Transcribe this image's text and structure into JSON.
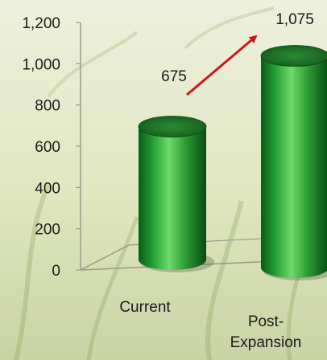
{
  "chart_data": {
    "type": "bar",
    "style": "3d-cylinder",
    "categories": [
      {
        "label": "Current",
        "lines": [
          "Current"
        ]
      },
      {
        "label": "Post-Expansion",
        "lines": [
          "Post-",
          "Expansion"
        ]
      }
    ],
    "values": [
      675,
      1075
    ],
    "data_labels": [
      "675",
      "1,075"
    ],
    "y_ticks": [
      "0",
      "200",
      "400",
      "600",
      "800",
      "1,000",
      "1,200"
    ],
    "ylim": [
      0,
      1200
    ],
    "grid": false,
    "legend": "none",
    "annotation": "red arrow from Current label toward Post-Expansion bar top",
    "colors": {
      "bar": "#1f8f2a",
      "bar_highlight": "#7fe07a",
      "bar_shadow": "#0a4d12",
      "arrow": "#c81a1a",
      "axis": "#9a9a88"
    }
  }
}
